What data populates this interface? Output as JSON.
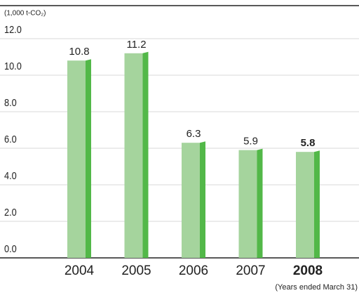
{
  "chart_data": {
    "type": "bar",
    "unit_label": "(1,000 t-CO₂)",
    "footnote": "(Years ended March 31)",
    "categories": [
      "2004",
      "2005",
      "2006",
      "2007",
      "2008"
    ],
    "values": [
      10.8,
      11.2,
      6.3,
      5.9,
      5.8
    ],
    "value_labels": [
      "10.8",
      "11.2",
      "6.3",
      "5.9",
      "5.8"
    ],
    "color": "#a5d49d",
    "side_color": "#52b848",
    "highlight_color": "#3aa935",
    "highlight_index": 4,
    "ylim": [
      0,
      12
    ],
    "yticks": [
      {
        "value": 0,
        "label": "0.0"
      },
      {
        "value": 2,
        "label": "2.0"
      },
      {
        "value": 4,
        "label": "4.0"
      },
      {
        "value": 6,
        "label": "6.0"
      },
      {
        "value": 8,
        "label": "8.0"
      },
      {
        "value": 10,
        "label": "10.0"
      },
      {
        "value": 12,
        "label": "12.0"
      }
    ],
    "grid": true
  }
}
